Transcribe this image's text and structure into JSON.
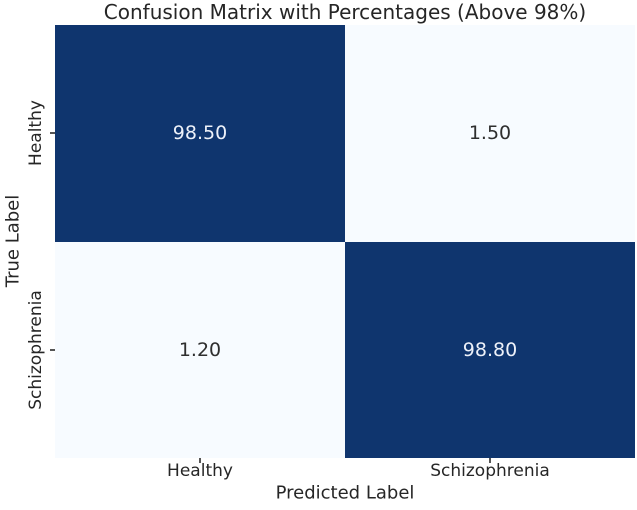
{
  "chart_data": {
    "type": "heatmap",
    "title": "Confusion Matrix with Percentages (Above 98%)",
    "xlabel": "Predicted Label",
    "ylabel": "True Label",
    "x_categories": [
      "Healthy",
      "Schizophrenia"
    ],
    "y_categories": [
      "Healthy",
      "Schizophrenia"
    ],
    "values": [
      [
        98.5,
        1.5
      ],
      [
        1.2,
        98.8
      ]
    ],
    "value_labels": [
      [
        "98.50",
        "1.50"
      ],
      [
        "1.20",
        "98.80"
      ]
    ],
    "value_range": [
      0,
      100
    ],
    "colormap": "Blues",
    "grid": false,
    "legend": "none",
    "colorbar": false
  },
  "colors": {
    "background": "#ffffff",
    "cell_dark": "#0f356e",
    "cell_light": "#f7fbff",
    "annot_on_dark": "#edf1f9",
    "annot_on_light": "#2e2e2e",
    "label_text": "#262626",
    "tick_mark": "#555555"
  }
}
